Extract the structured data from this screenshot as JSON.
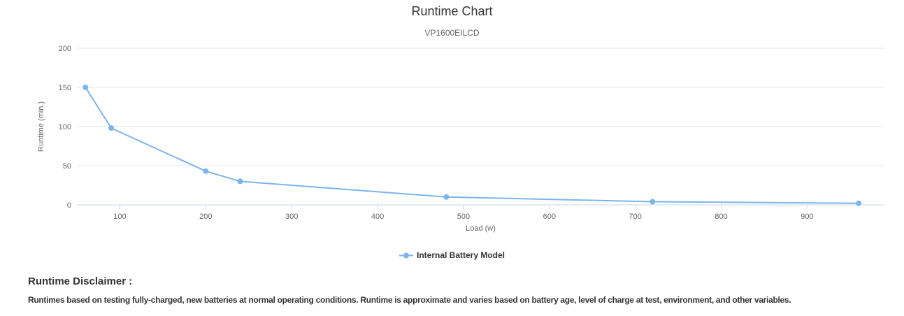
{
  "page": {
    "disclaimer_heading": "Runtime Disclaimer :",
    "disclaimer_body": "Runtimes based on testing fully-charged, new batteries at normal operating conditions. Runtime is approximate and varies based on battery age, level of charge at test, environment, and other variables."
  },
  "chart_data": {
    "type": "line",
    "title": "Runtime Chart",
    "subtitle": "VP1600EILCD",
    "xlabel": "Load (w)",
    "ylabel": "Runtime (min.)",
    "x_ticks": [
      100,
      200,
      300,
      400,
      500,
      600,
      700,
      800,
      900
    ],
    "y_ticks": [
      0,
      50,
      100,
      150,
      200
    ],
    "xlim": [
      50,
      990
    ],
    "ylim": [
      0,
      200
    ],
    "grid": true,
    "legend_position": "bottom",
    "series": [
      {
        "name": "Internal Battery Model",
        "color": "#7cb5ec",
        "points": [
          {
            "x": 60,
            "y": 150
          },
          {
            "x": 90,
            "y": 98
          },
          {
            "x": 200,
            "y": 43
          },
          {
            "x": 240,
            "y": 30
          },
          {
            "x": 480,
            "y": 10
          },
          {
            "x": 720,
            "y": 4
          },
          {
            "x": 960,
            "y": 2
          }
        ]
      }
    ],
    "colors": {
      "grid": "#e6e6e6",
      "axis_line": "#ccd6eb",
      "title_text": "#333333",
      "muted_text": "#666666"
    }
  }
}
